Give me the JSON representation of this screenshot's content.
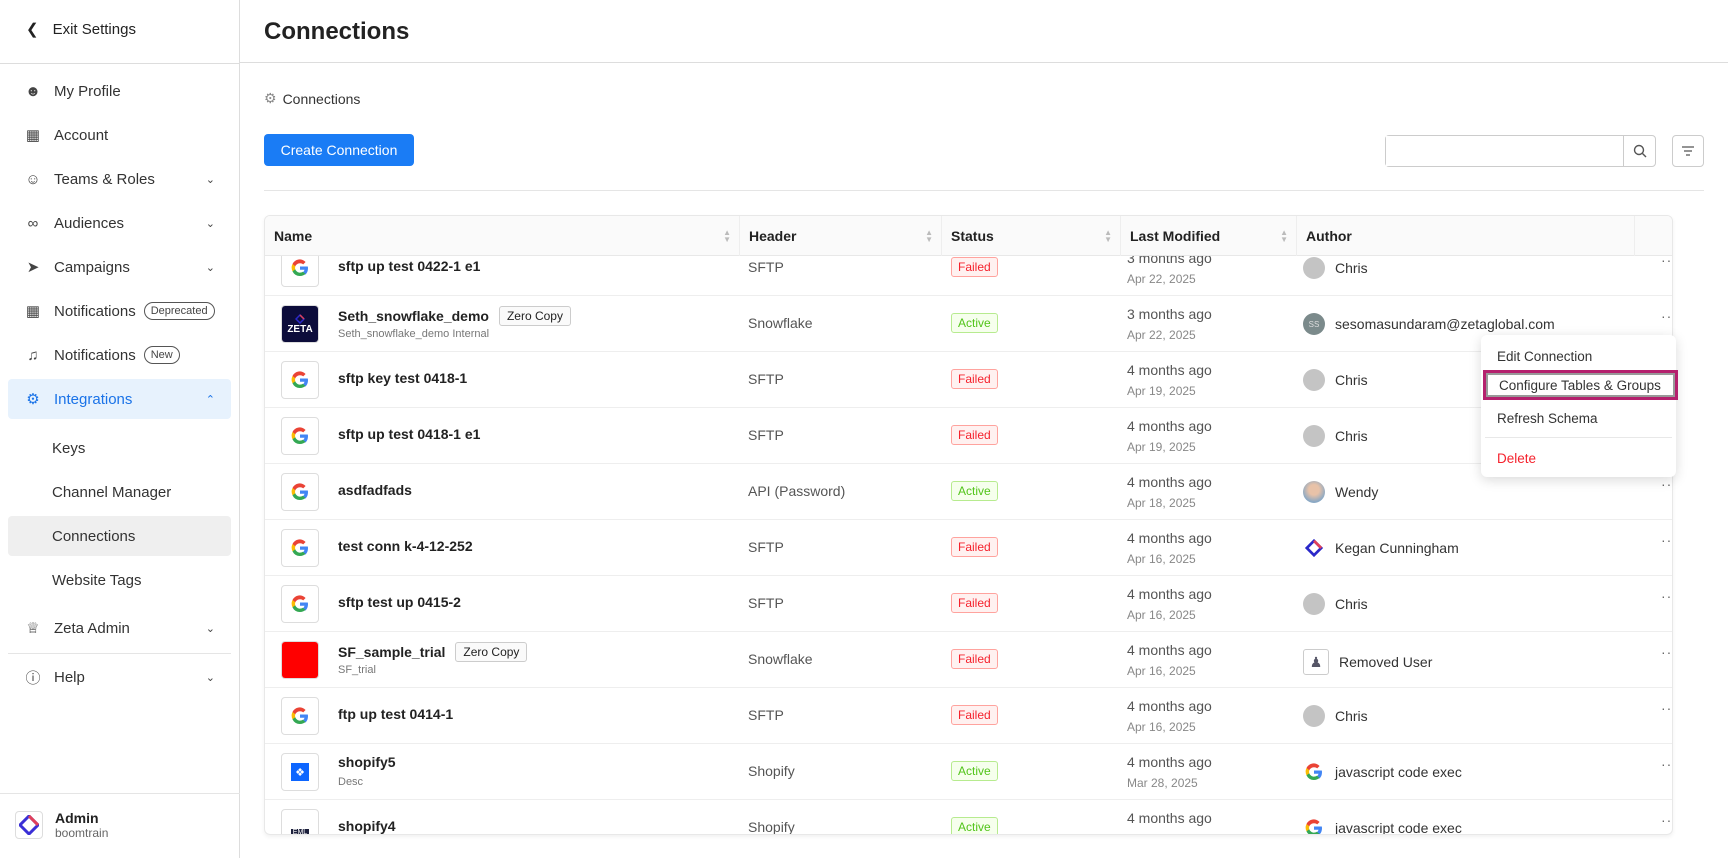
{
  "sidebar": {
    "exit_label": "Exit Settings",
    "items": [
      {
        "label": "My Profile",
        "icon": "user-icon"
      },
      {
        "label": "Account",
        "icon": "building-icon"
      },
      {
        "label": "Teams & Roles",
        "icon": "users-icon",
        "chevron": "down"
      },
      {
        "label": "Audiences",
        "icon": "audiences-icon",
        "chevron": "down"
      },
      {
        "label": "Campaigns",
        "icon": "send-icon",
        "chevron": "down"
      },
      {
        "label": "Notifications",
        "icon": "building-icon",
        "badge": "Deprecated"
      },
      {
        "label": "Notifications",
        "icon": "bell-icon",
        "badge": "New"
      },
      {
        "label": "Integrations",
        "icon": "puzzle-icon",
        "chevron": "up",
        "active": true
      }
    ],
    "sub_items": [
      "Keys",
      "Channel Manager",
      "Connections",
      "Website Tags"
    ],
    "selected_sub": "Connections",
    "zeta_admin": "Zeta Admin",
    "help": "Help",
    "user": {
      "name": "Admin",
      "org": "boomtrain"
    }
  },
  "header": {
    "title": "Connections"
  },
  "breadcrumb": "Connections",
  "toolbar": {
    "create_label": "Create Connection",
    "search_placeholder": ""
  },
  "accent": "#1a7cf5",
  "table": {
    "columns": [
      "Name",
      "Header",
      "Status",
      "Last Modified",
      "Author"
    ],
    "rows": [
      {
        "name": "sftp up test 0422-1 e1",
        "logo": "google",
        "header": "SFTP",
        "status": "Failed",
        "ago": "3 months ago",
        "date": "Apr 22, 2025",
        "author": "Chris",
        "avatar": "grey"
      },
      {
        "name": "Seth_snowflake_demo",
        "tag": "Zero Copy",
        "desc": "Seth_snowflake_demo Internal",
        "logo": "zeta",
        "header": "Snowflake",
        "status": "Active",
        "ago": "3 months ago",
        "date": "Apr 22, 2025",
        "author": "sesomasundaram@zetaglobal.com",
        "avatar": "initials",
        "initials": "SS"
      },
      {
        "name": "sftp key test 0418-1",
        "logo": "google",
        "header": "SFTP",
        "status": "Failed",
        "ago": "4 months ago",
        "date": "Apr 19, 2025",
        "author": "Chris",
        "avatar": "grey"
      },
      {
        "name": "sftp up test 0418-1 e1",
        "logo": "google",
        "header": "SFTP",
        "status": "Failed",
        "ago": "4 months ago",
        "date": "Apr 19, 2025",
        "author": "Chris",
        "avatar": "grey"
      },
      {
        "name": "asdfadfads",
        "logo": "google",
        "header": "API (Password)",
        "status": "Active",
        "ago": "4 months ago",
        "date": "Apr 18, 2025",
        "author": "Wendy",
        "avatar": "photo"
      },
      {
        "name": "test conn k-4-12-252",
        "logo": "google",
        "header": "SFTP",
        "status": "Failed",
        "ago": "4 months ago",
        "date": "Apr 16, 2025",
        "author": "Kegan Cunningham",
        "avatar": "zeta"
      },
      {
        "name": "sftp test up 0415-2",
        "logo": "google",
        "header": "SFTP",
        "status": "Failed",
        "ago": "4 months ago",
        "date": "Apr 16, 2025",
        "author": "Chris",
        "avatar": "grey"
      },
      {
        "name": "SF_sample_trial",
        "tag": "Zero Copy",
        "desc": "SF_trial",
        "logo": "red",
        "header": "Snowflake",
        "status": "Failed",
        "ago": "4 months ago",
        "date": "Apr 16, 2025",
        "author": "Removed User",
        "avatar": "removed"
      },
      {
        "name": "ftp up test 0414-1",
        "logo": "google",
        "header": "SFTP",
        "status": "Failed",
        "ago": "4 months ago",
        "date": "Apr 16, 2025",
        "author": "Chris",
        "avatar": "grey"
      },
      {
        "name": "shopify5",
        "desc": "Desc",
        "logo": "dropbox",
        "header": "Shopify",
        "status": "Active",
        "ago": "4 months ago",
        "date": "Mar 28, 2025",
        "author": "javascript code exec",
        "avatar": "google"
      },
      {
        "name": "shopify4",
        "logo": "eml",
        "header": "Shopify",
        "status": "Active",
        "ago": "4 months ago",
        "date": "",
        "author": "javascript code exec",
        "avatar": "google"
      }
    ]
  },
  "row_menu": {
    "items": [
      "Edit Connection",
      "Configure Tables & Groups",
      "Refresh Schema",
      "Delete"
    ],
    "highlighted": "Configure Tables & Groups"
  }
}
